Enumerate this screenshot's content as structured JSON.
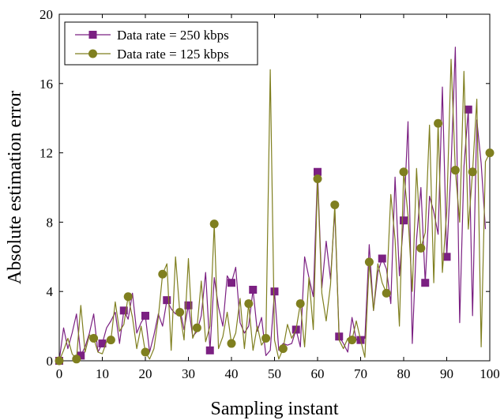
{
  "chart_data": {
    "type": "line",
    "xlabel": "Sampling instant",
    "ylabel": "Absolute estimation error",
    "xlim": [
      0,
      100
    ],
    "ylim": [
      0,
      20
    ],
    "xticks": [
      0,
      10,
      20,
      30,
      40,
      50,
      60,
      70,
      80,
      90,
      100
    ],
    "yticks": [
      0,
      4,
      8,
      12,
      16,
      20
    ],
    "grid": false,
    "legend_position": "top-left",
    "series": [
      {
        "name": "Data rate = 250 kbps",
        "color": "#7b2082",
        "marker": "square",
        "marker_every": 5,
        "x": [
          0,
          1,
          2,
          3,
          4,
          5,
          6,
          7,
          8,
          9,
          10,
          11,
          12,
          13,
          14,
          15,
          16,
          17,
          18,
          19,
          20,
          21,
          22,
          23,
          24,
          25,
          26,
          27,
          28,
          29,
          30,
          31,
          32,
          33,
          34,
          35,
          36,
          37,
          38,
          39,
          40,
          41,
          42,
          43,
          44,
          45,
          46,
          47,
          48,
          49,
          50,
          51,
          52,
          53,
          54,
          55,
          56,
          57,
          58,
          59,
          60,
          61,
          62,
          63,
          64,
          65,
          66,
          67,
          68,
          69,
          70,
          71,
          72,
          73,
          74,
          75,
          76,
          77,
          78,
          79,
          80,
          81,
          82,
          83,
          84,
          85,
          86,
          87,
          88,
          89,
          90,
          91,
          92,
          93,
          94,
          95,
          96,
          97,
          98,
          99
        ],
        "y": [
          0.0,
          1.9,
          0.7,
          1.6,
          2.7,
          0.3,
          0.8,
          1.6,
          2.7,
          0.5,
          1.0,
          1.9,
          2.3,
          2.8,
          1.0,
          2.9,
          2.4,
          3.9,
          1.6,
          2.2,
          2.6,
          0.5,
          1.5,
          2.7,
          2.0,
          3.5,
          3.0,
          2.7,
          3.0,
          1.8,
          3.2,
          1.4,
          1.7,
          2.6,
          5.1,
          0.6,
          4.8,
          3.1,
          2.0,
          4.9,
          4.5,
          5.4,
          2.2,
          1.6,
          2.0,
          4.1,
          1.7,
          2.5,
          0.3,
          0.6,
          4.0,
          0.6,
          1.0,
          0.9,
          1.0,
          1.8,
          0.8,
          6.0,
          4.8,
          3.7,
          10.9,
          4.2,
          6.9,
          4.7,
          8.7,
          1.4,
          1.0,
          0.5,
          2.5,
          1.2,
          1.2,
          1.3,
          6.7,
          2.9,
          5.1,
          5.9,
          5.3,
          3.3,
          10.6,
          4.9,
          8.1,
          13.8,
          1.0,
          7.0,
          10.0,
          4.5,
          9.5,
          8.6,
          7.3,
          15.8,
          6.0,
          11.2,
          18.1,
          2.2,
          11.2,
          14.5,
          2.6,
          13.9,
          11.4,
          7.6
        ]
      },
      {
        "name": "Data rate = 125 kbps",
        "color": "#7f7f1f",
        "marker": "circle",
        "marker_every": 4,
        "x": [
          0,
          1,
          2,
          3,
          4,
          5,
          6,
          7,
          8,
          9,
          10,
          11,
          12,
          13,
          14,
          15,
          16,
          17,
          18,
          19,
          20,
          21,
          22,
          23,
          24,
          25,
          26,
          27,
          28,
          29,
          30,
          31,
          32,
          33,
          34,
          35,
          36,
          37,
          38,
          39,
          40,
          41,
          42,
          43,
          44,
          45,
          46,
          47,
          48,
          49,
          50,
          51,
          52,
          53,
          54,
          55,
          56,
          57,
          58,
          59,
          60,
          61,
          62,
          63,
          64,
          65,
          66,
          67,
          68,
          69,
          70,
          71,
          72,
          73,
          74,
          75,
          76,
          77,
          78,
          79,
          80,
          81,
          82,
          83,
          84,
          85,
          86,
          87,
          88,
          89,
          90,
          91,
          92,
          93,
          94,
          95,
          96,
          97,
          98,
          99,
          100
        ],
        "y": [
          0.0,
          0.6,
          1.3,
          0.4,
          0.1,
          3.2,
          0.5,
          1.5,
          1.3,
          0.5,
          0.4,
          1.1,
          1.2,
          3.4,
          1.7,
          2.1,
          3.7,
          2.5,
          0.7,
          2.0,
          0.5,
          0.1,
          0.7,
          2.5,
          5.0,
          5.6,
          0.6,
          6.0,
          2.8,
          1.2,
          5.9,
          1.3,
          1.9,
          4.6,
          1.1,
          2.0,
          7.9,
          0.7,
          1.4,
          2.8,
          1.0,
          1.6,
          3.6,
          0.7,
          3.3,
          0.6,
          2.0,
          0.9,
          1.3,
          16.8,
          1.2,
          0.1,
          0.7,
          2.1,
          1.3,
          1.8,
          3.3,
          0.8,
          4.8,
          1.8,
          10.5,
          3.9,
          2.3,
          4.4,
          9.0,
          1.2,
          0.7,
          1.3,
          1.2,
          2.3,
          1.2,
          0.2,
          5.7,
          2.9,
          5.6,
          4.5,
          3.9,
          9.6,
          7.0,
          2.0,
          10.9,
          8.4,
          4.0,
          11.1,
          6.5,
          7.4,
          13.6,
          4.5,
          13.7,
          5.1,
          8.6,
          17.4,
          11.0,
          8.0,
          16.7,
          7.6,
          10.9,
          15.1,
          0.8,
          11.5,
          12.0
        ]
      }
    ]
  }
}
